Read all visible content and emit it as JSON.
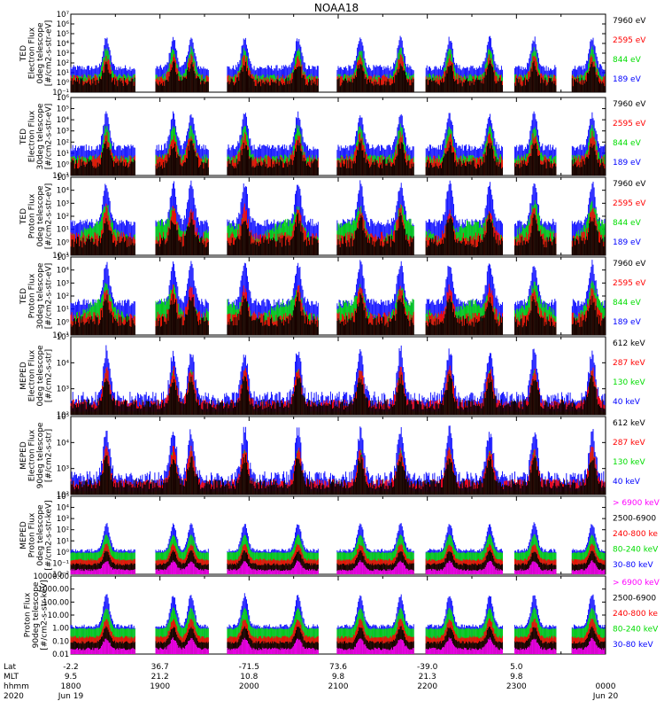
{
  "chart_data": {
    "type": "scatter",
    "title": "NOAA18",
    "colors": {
      "black": "#000000",
      "red": "#ff0000",
      "green": "#00dd00",
      "blue": "#0000ff",
      "magenta": "#ff00ff"
    },
    "panels": [
      {
        "ylabel": [
          "TED",
          "Electron Flux",
          "0deg telescope",
          "[#/cm2-s-str-eV]"
        ],
        "yticks": [
          "10⁻¹",
          "10⁰",
          "10¹",
          "10²",
          "10³",
          "10⁴",
          "10⁵",
          "10⁶",
          "10⁷"
        ],
        "ylim_log": [
          -1,
          7
        ],
        "legend": [
          {
            "label": "7960 eV",
            "color": "black"
          },
          {
            "label": "2595 eV",
            "color": "red"
          },
          {
            "label": "844 eV",
            "color": "green"
          },
          {
            "label": "189 eV",
            "color": "blue"
          }
        ]
      },
      {
        "ylabel": [
          "TED",
          "Electron Flux",
          "30deg telescope",
          "[#/cm2-s-str-eV]"
        ],
        "yticks": [
          "10⁻¹",
          "10⁰",
          "10¹",
          "10²",
          "10³",
          "10⁴",
          "10⁵",
          "10⁶"
        ],
        "ylim_log": [
          -1,
          6
        ],
        "legend": [
          {
            "label": "7960 eV",
            "color": "black"
          },
          {
            "label": "2595 eV",
            "color": "red"
          },
          {
            "label": "844 eV",
            "color": "green"
          },
          {
            "label": "189 eV",
            "color": "blue"
          }
        ]
      },
      {
        "ylabel": [
          "TED",
          "Proton Flux",
          "0deg telescope",
          "[#/cm2-s-str-eV]"
        ],
        "yticks": [
          "10⁻¹",
          "10⁰",
          "10¹",
          "10²",
          "10³",
          "10⁴",
          "10⁵"
        ],
        "ylim_log": [
          -1,
          5
        ],
        "legend": [
          {
            "label": "7960 eV",
            "color": "black"
          },
          {
            "label": "2595 eV",
            "color": "red"
          },
          {
            "label": "844 eV",
            "color": "green"
          },
          {
            "label": "189 eV",
            "color": "blue"
          }
        ]
      },
      {
        "ylabel": [
          "TED",
          "Proton Flux",
          "30deg telescope",
          "[#/cm2-s-str-eV]"
        ],
        "yticks": [
          "10⁻¹",
          "10⁰",
          "10¹",
          "10²",
          "10³",
          "10⁴",
          "10⁵"
        ],
        "ylim_log": [
          -1,
          5
        ],
        "legend": [
          {
            "label": "7960 eV",
            "color": "black"
          },
          {
            "label": "2595 eV",
            "color": "red"
          },
          {
            "label": "844 eV",
            "color": "green"
          },
          {
            "label": "189 eV",
            "color": "blue"
          }
        ]
      },
      {
        "ylabel": [
          "MEPED",
          "Electron Flux",
          "0deg telescope",
          "[#/cm2-s-str]"
        ],
        "yticks": [
          "10²",
          "10³",
          "10⁴",
          "10⁵"
        ],
        "ylim_log": [
          2,
          5
        ],
        "legend": [
          {
            "label": "612 keV",
            "color": "black"
          },
          {
            "label": "287 keV",
            "color": "red"
          },
          {
            "label": "130 keV",
            "color": "green"
          },
          {
            "label": "40 keV",
            "color": "blue"
          }
        ]
      },
      {
        "ylabel": [
          "MEPED",
          "Electron Flux",
          "90deg telescope",
          "[#/cm2-s-str]"
        ],
        "yticks": [
          "10²",
          "10³",
          "10⁴",
          "10⁵"
        ],
        "ylim_log": [
          2,
          5
        ],
        "legend": [
          {
            "label": "612 keV",
            "color": "black"
          },
          {
            "label": "287 keV",
            "color": "red"
          },
          {
            "label": "130 keV",
            "color": "green"
          },
          {
            "label": "40 keV",
            "color": "blue"
          }
        ]
      },
      {
        "ylabel": [
          "MEPED",
          "Proton Flux",
          "0deg telescope",
          "[#/cm2-s-str-keV]"
        ],
        "yticks": [
          "10⁻²",
          "10⁻¹",
          "10⁰",
          "10¹",
          "10²",
          "10³",
          "10⁴",
          "10⁵"
        ],
        "ylim_log": [
          -2,
          5
        ],
        "legend": [
          {
            "label": "> 6900 keV",
            "color": "magenta"
          },
          {
            "label": "2500-6900",
            "color": "black"
          },
          {
            "label": "240-800 ke",
            "color": "red"
          },
          {
            "label": "80-240 keV",
            "color": "green"
          },
          {
            "label": "30-80 keV",
            "color": "blue"
          }
        ]
      },
      {
        "ylabel": [
          "Proton Flux",
          "90deg telescope",
          "[#/cm2-s-str-keV]"
        ],
        "yticks": [
          "0.01",
          "0.10",
          "1.00",
          "10.00",
          "100.00",
          "1000.00",
          "10000.00"
        ],
        "ylim_log": [
          -2,
          4
        ],
        "legend": [
          {
            "label": "> 6900 keV",
            "color": "magenta"
          },
          {
            "label": "2500-6900",
            "color": "black"
          },
          {
            "label": "240-800 ke",
            "color": "red"
          },
          {
            "label": "80-240 keV",
            "color": "green"
          },
          {
            "label": "30-80 keV",
            "color": "blue"
          }
        ]
      }
    ],
    "xaxis": {
      "row_labels": [
        "Lat",
        "MLT",
        "hhmm",
        "2020"
      ],
      "ticks": [
        {
          "lat": "-2.2",
          "mlt": "9.5",
          "hhmm": "1800",
          "date": "Jun 19"
        },
        {
          "lat": "36.7",
          "mlt": "21.2",
          "hhmm": "1900",
          "date": ""
        },
        {
          "lat": "-71.5",
          "mlt": "10.8",
          "hhmm": "2000",
          "date": ""
        },
        {
          "lat": "73.6",
          "mlt": "9.8",
          "hhmm": "2100",
          "date": ""
        },
        {
          "lat": "-39.0",
          "mlt": "21.3",
          "hhmm": "2200",
          "date": ""
        },
        {
          "lat": "5.0",
          "mlt": "9.8",
          "hhmm": "2300",
          "date": ""
        },
        {
          "lat": "",
          "mlt": "",
          "hhmm": "0000",
          "date": "Jun 20"
        }
      ],
      "hours_range": [
        18,
        24
      ]
    }
  }
}
